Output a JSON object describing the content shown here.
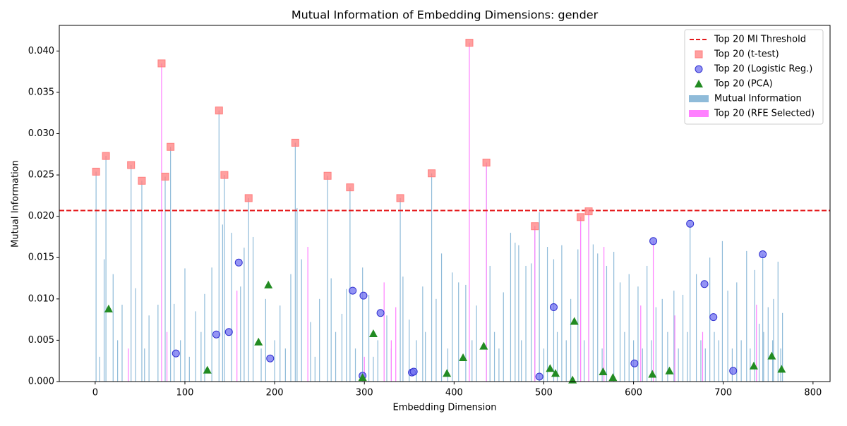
{
  "chart_data": {
    "type": "bar",
    "title": "Mutual Information of Embedding Dimensions: gender",
    "xlabel": "Embedding Dimension",
    "ylabel": "Mutual Information",
    "xlim": [
      -40,
      819
    ],
    "ylim": [
      0,
      0.0431
    ],
    "xticks": [
      0,
      100,
      200,
      300,
      400,
      500,
      600,
      700,
      800
    ],
    "yticks": [
      {
        "value": 0,
        "label": "0.000"
      },
      {
        "value": 0.005,
        "label": "0.005"
      },
      {
        "value": 0.01,
        "label": "0.010"
      },
      {
        "value": 0.015,
        "label": "0.015"
      },
      {
        "value": 0.02,
        "label": "0.020"
      },
      {
        "value": 0.025,
        "label": "0.025"
      },
      {
        "value": 0.03,
        "label": "0.030"
      },
      {
        "value": 0.035,
        "label": "0.035"
      },
      {
        "value": 0.04,
        "label": "0.040"
      }
    ],
    "legend": "upper right",
    "threshold": {
      "name": "Top 20 MI Threshold",
      "value": 0.0207,
      "color": "#e41a1c"
    },
    "series": [
      {
        "name": "Top 20 (t-test)",
        "kind": "square",
        "color": "#ff7f7f",
        "x": [
          1,
          12,
          40,
          52,
          74,
          78,
          84,
          138,
          144,
          171,
          223,
          259,
          284,
          340,
          375,
          417,
          436,
          490,
          541,
          550
        ],
        "values": [
          0.0254,
          0.0273,
          0.0262,
          0.0243,
          0.0385,
          0.0248,
          0.0284,
          0.0328,
          0.025,
          0.0222,
          0.0289,
          0.0249,
          0.0235,
          0.0222,
          0.0252,
          0.041,
          0.0265,
          0.0188,
          0.0199,
          0.0206
        ]
      },
      {
        "name": "Top 20 (Logistic Reg.)",
        "kind": "circle",
        "color": "#7070f0",
        "x": [
          90,
          135,
          149,
          160,
          195,
          287,
          298,
          299,
          318,
          353,
          355,
          495,
          511,
          601,
          622,
          663,
          679,
          689,
          711,
          744
        ],
        "values": [
          0.0034,
          0.0057,
          0.006,
          0.0144,
          0.0028,
          0.011,
          0.0007,
          0.0104,
          0.0083,
          0.0011,
          0.0012,
          0.0006,
          0.009,
          0.0022,
          0.017,
          0.0191,
          0.0118,
          0.0078,
          0.0013,
          0.0154
        ]
      },
      {
        "name": "Top 20 (PCA)",
        "kind": "triangle",
        "color": "#228b22",
        "x": [
          15,
          125,
          182,
          193,
          298,
          310,
          392,
          410,
          433,
          507,
          513,
          532,
          534,
          566,
          577,
          621,
          640,
          734,
          754,
          765
        ],
        "values": [
          0.0088,
          0.0014,
          0.0048,
          0.0117,
          0.0005,
          0.0058,
          0.001,
          0.0029,
          0.0043,
          0.0016,
          0.001,
          0.0002,
          0.0073,
          0.0012,
          0.0005,
          0.0009,
          0.0013,
          0.0019,
          0.0031,
          0.0015
        ]
      },
      {
        "name": "Mutual Information",
        "kind": "bar",
        "color": "#8fbbd9",
        "x": [
          1,
          5,
          10,
          12,
          20,
          25,
          30,
          40,
          45,
          52,
          55,
          60,
          70,
          78,
          84,
          88,
          95,
          100,
          105,
          112,
          118,
          122,
          130,
          138,
          142,
          144,
          152,
          162,
          166,
          171,
          176,
          185,
          190,
          200,
          206,
          212,
          218,
          223,
          225,
          230,
          240,
          245,
          250,
          259,
          263,
          268,
          275,
          280,
          284,
          290,
          298,
          305,
          310,
          315,
          325,
          330,
          340,
          343,
          350,
          358,
          365,
          368,
          375,
          380,
          386,
          393,
          398,
          405,
          413,
          420,
          425,
          436,
          440,
          445,
          450,
          455,
          463,
          468,
          472,
          475,
          480,
          486,
          490,
          495,
          500,
          504,
          511,
          515,
          520,
          525,
          530,
          538,
          541,
          545,
          550,
          555,
          560,
          565,
          570,
          578,
          585,
          590,
          595,
          600,
          605,
          610,
          615,
          620,
          625,
          632,
          638,
          645,
          650,
          655,
          660,
          663,
          670,
          675,
          680,
          685,
          690,
          695,
          699,
          705,
          710,
          715,
          720,
          726,
          730,
          735,
          740,
          744,
          745,
          750,
          755,
          756,
          761,
          764,
          766
        ],
        "values": [
          0.0254,
          0.003,
          0.0148,
          0.0273,
          0.013,
          0.005,
          0.0093,
          0.0262,
          0.0113,
          0.0243,
          0.004,
          0.008,
          0.0093,
          0.0248,
          0.0284,
          0.0094,
          0.005,
          0.0137,
          0.003,
          0.0085,
          0.006,
          0.0106,
          0.0138,
          0.0328,
          0.019,
          0.025,
          0.018,
          0.0115,
          0.0162,
          0.0222,
          0.0175,
          0.004,
          0.01,
          0.005,
          0.0092,
          0.004,
          0.013,
          0.0289,
          0.021,
          0.0148,
          0.0072,
          0.003,
          0.01,
          0.0249,
          0.0125,
          0.006,
          0.0082,
          0.0112,
          0.0235,
          0.004,
          0.0138,
          0.0105,
          0.003,
          0.005,
          0.008,
          0.004,
          0.0222,
          0.0127,
          0.0075,
          0.005,
          0.0115,
          0.006,
          0.0252,
          0.01,
          0.0155,
          0.004,
          0.0132,
          0.012,
          0.0117,
          0.005,
          0.0092,
          0.0265,
          0.014,
          0.006,
          0.004,
          0.0108,
          0.018,
          0.0168,
          0.0165,
          0.005,
          0.014,
          0.0143,
          0.0188,
          0.0205,
          0.004,
          0.0163,
          0.0148,
          0.006,
          0.0165,
          0.005,
          0.01,
          0.016,
          0.0199,
          0.005,
          0.0206,
          0.0166,
          0.0155,
          0.004,
          0.014,
          0.0157,
          0.012,
          0.006,
          0.013,
          0.005,
          0.0115,
          0.004,
          0.014,
          0.005,
          0.009,
          0.01,
          0.006,
          0.011,
          0.004,
          0.0105,
          0.006,
          0.0191,
          0.013,
          0.005,
          0.004,
          0.015,
          0.006,
          0.005,
          0.017,
          0.011,
          0.004,
          0.012,
          0.005,
          0.0158,
          0.004,
          0.0135,
          0.007,
          0.0154,
          0.006,
          0.009,
          0.005,
          0.01,
          0.0145,
          0.004,
          0.0083
        ]
      },
      {
        "name": "Top 20 (RFE Selected)",
        "kind": "bar",
        "color": "#ff80ff",
        "x": [
          37,
          74,
          80,
          158,
          237,
          300,
          322,
          330,
          335,
          417,
          436,
          490,
          541,
          550,
          567,
          608,
          622,
          646,
          677,
          737
        ],
        "values": [
          0.004,
          0.0385,
          0.006,
          0.011,
          0.0163,
          0.003,
          0.012,
          0.005,
          0.009,
          0.041,
          0.0265,
          0.0188,
          0.0199,
          0.0206,
          0.0163,
          0.0092,
          0.017,
          0.008,
          0.006,
          0.0093
        ]
      }
    ]
  }
}
